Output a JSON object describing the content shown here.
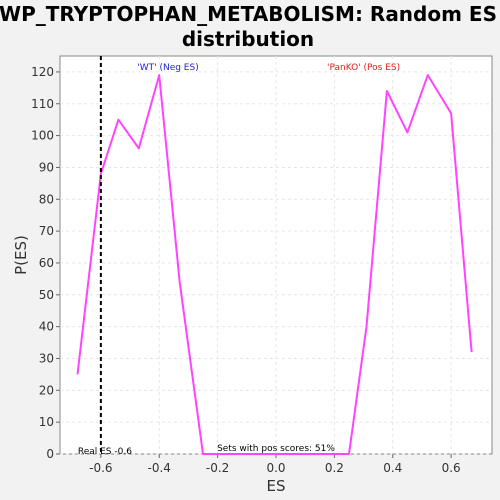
{
  "chart_data": {
    "type": "line",
    "title_line1": "WP_TRYPTOPHAN_METABOLISM: Random ES",
    "title_line2": "distribution",
    "xlabel": "ES",
    "ylabel": "P(ES)",
    "xlim": [
      -0.74,
      0.74
    ],
    "ylim": [
      0,
      125
    ],
    "xticks": [
      -0.6,
      -0.4,
      -0.2,
      0.0,
      0.2,
      0.4,
      0.6
    ],
    "xtick_labels": [
      "-0.6",
      "-0.4",
      "-0.2",
      "0.0",
      "0.2",
      "0.4",
      "0.6"
    ],
    "yticks": [
      0,
      10,
      20,
      30,
      40,
      50,
      60,
      70,
      80,
      90,
      100,
      110,
      120
    ],
    "ytick_labels": [
      "0",
      "10",
      "20",
      "30",
      "40",
      "50",
      "60",
      "70",
      "80",
      "90",
      "100",
      "110",
      "120"
    ],
    "grid": true,
    "series": [
      {
        "color": "#ff44ff",
        "x": [
          -0.68,
          -0.6,
          -0.54,
          -0.47,
          -0.4,
          -0.33,
          -0.25,
          -0.18,
          0.25,
          0.31,
          0.38,
          0.45,
          0.52,
          0.6,
          0.67
        ],
        "y": [
          25,
          88,
          105,
          96,
          119,
          54,
          0,
          0,
          0,
          40,
          114,
          101,
          119,
          107,
          32
        ]
      }
    ],
    "reference_line": {
      "x": -0.6,
      "label": "Real ES -0.6",
      "style": "dashed"
    },
    "annotations": {
      "neg_label": "'WT' (Neg ES)",
      "neg_color": "#2222cc",
      "neg_x": -0.37,
      "pos_label": "'PanKO' (Pos ES)",
      "pos_color": "#dd2222",
      "pos_x": 0.3,
      "pos_scores_text": "Sets with pos scores: 51%",
      "pos_scores_x": 0.0
    }
  }
}
